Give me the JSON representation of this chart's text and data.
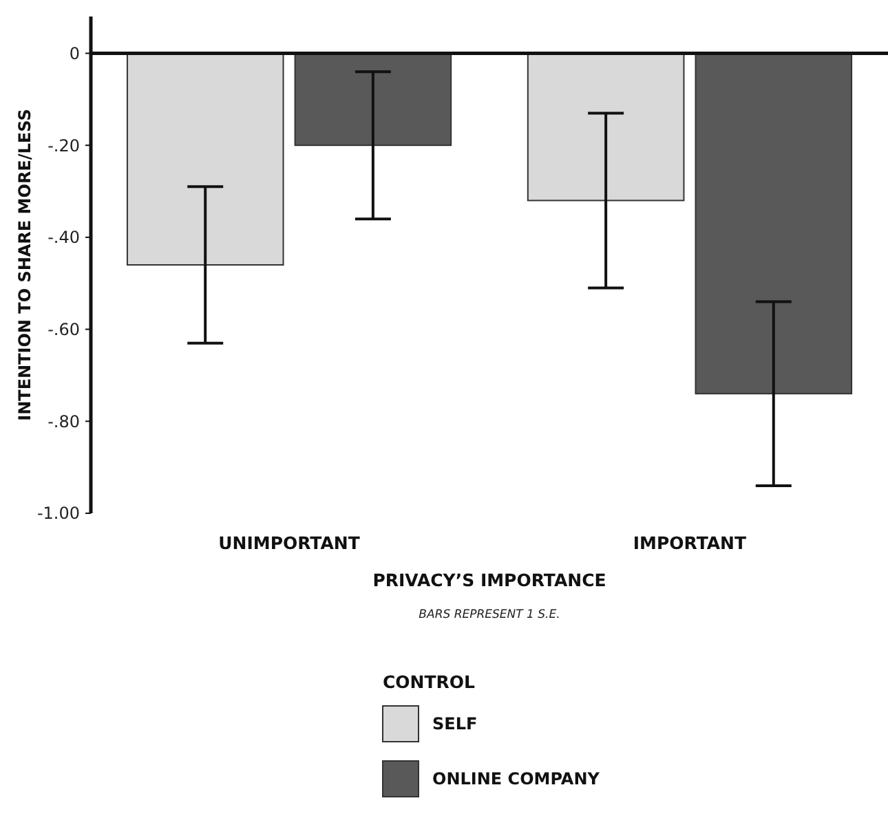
{
  "chart_data": {
    "type": "bar",
    "xlabel": "PRIVACY’S IMPORTANCE",
    "ylabel": "INTENTION TO SHARE MORE/LESS",
    "legend_title": "CONTROL",
    "categories": [
      "UNIMPORTANT",
      "IMPORTANT"
    ],
    "series": [
      {
        "name": "SELF",
        "color": "#d9d9d9",
        "values": [
          -0.46,
          -0.32
        ],
        "errors": [
          0.17,
          0.19
        ]
      },
      {
        "name": "ONLINE COMPANY",
        "color": "#595959",
        "values": [
          -0.2,
          -0.74
        ],
        "errors": [
          0.16,
          0.2
        ]
      }
    ],
    "ylim": [
      -1.0,
      0.08
    ],
    "yticks": [
      0,
      {
        "value": -0.2,
        "label": "-.20"
      },
      {
        "value": -0.4,
        "label": "-.40"
      },
      {
        "value": -0.6,
        "label": "-.60"
      },
      {
        "value": -0.8,
        "label": "-.80"
      },
      {
        "value": -1.0,
        "label": "-1.00"
      }
    ],
    "legend": "bottom",
    "annotations": [
      "BARS REPRESENT 1 S.E."
    ]
  }
}
